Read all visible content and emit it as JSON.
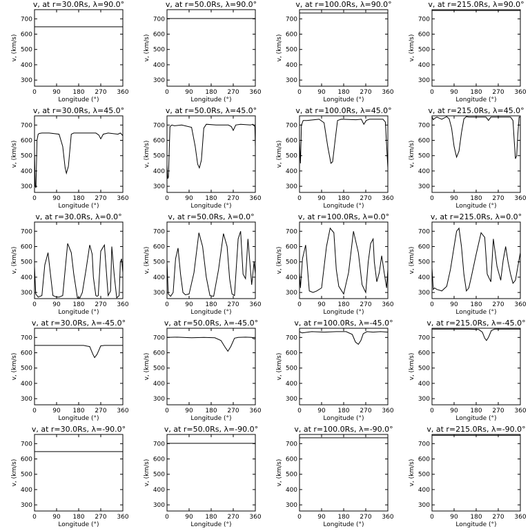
{
  "panels_common": {
    "xlabel": "Longitude (°)",
    "ylabel": "v, (km/s)",
    "xticks": [
      0,
      90,
      180,
      270,
      360
    ],
    "yticks": [
      300,
      400,
      500,
      600,
      700
    ],
    "xlim": [
      0,
      360
    ],
    "ylim": [
      260,
      760
    ]
  },
  "chart_data": [
    {
      "type": "line",
      "title": "v, at r=30.0Rs, λ=90.0°",
      "x": [
        0,
        360
      ],
      "y": [
        648,
        648
      ]
    },
    {
      "type": "line",
      "title": "v, at r=50.0Rs, λ=90.0°",
      "x": [
        0,
        360
      ],
      "y": [
        702,
        702
      ]
    },
    {
      "type": "line",
      "title": "v, at r=100.0Rs, λ=90.0°",
      "x": [
        0,
        360
      ],
      "y": [
        738,
        738
      ]
    },
    {
      "type": "line",
      "title": "v, at r=215.0Rs, λ=90.0°",
      "x": [
        0,
        360
      ],
      "y": [
        754,
        754
      ]
    },
    {
      "type": "line",
      "title": "v, at r=30.0Rs, λ=45.0°",
      "x": [
        0,
        3,
        6,
        10,
        15,
        20,
        30,
        60,
        100,
        115,
        125,
        130,
        138,
        150,
        160,
        200,
        250,
        262,
        270,
        280,
        300,
        340,
        350,
        355,
        360
      ],
      "y": [
        520,
        300,
        290,
        600,
        640,
        645,
        648,
        648,
        640,
        560,
        420,
        385,
        430,
        640,
        648,
        648,
        648,
        635,
        610,
        640,
        648,
        640,
        648,
        640,
        630
      ]
    },
    {
      "type": "line",
      "title": "v, at r=50.0Rs, λ=45.0°",
      "x": [
        0,
        3,
        6,
        12,
        20,
        30,
        60,
        100,
        115,
        125,
        132,
        140,
        150,
        160,
        200,
        250,
        262,
        270,
        280,
        300,
        340,
        350,
        358,
        360
      ],
      "y": [
        440,
        350,
        360,
        690,
        700,
        695,
        700,
        685,
        560,
        445,
        420,
        470,
        680,
        705,
        700,
        700,
        690,
        665,
        700,
        705,
        700,
        705,
        690,
        560
      ]
    },
    {
      "type": "line",
      "title": "v, at r=100.0Rs, λ=45.0°",
      "x": [
        0,
        4,
        8,
        15,
        30,
        60,
        80,
        100,
        115,
        128,
        135,
        145,
        155,
        170,
        230,
        252,
        262,
        272,
        285,
        340,
        350,
        360
      ],
      "y": [
        600,
        450,
        700,
        730,
        730,
        735,
        738,
        715,
        560,
        450,
        460,
        600,
        730,
        738,
        735,
        738,
        705,
        730,
        738,
        738,
        720,
        420
      ]
    },
    {
      "type": "line",
      "title": "v, at r=215.0Rs, λ=45.0°",
      "x": [
        0,
        5,
        12,
        20,
        40,
        60,
        70,
        80,
        90,
        100,
        110,
        120,
        130,
        140,
        150,
        190,
        220,
        230,
        240,
        265,
        300,
        320,
        330,
        335,
        340,
        345,
        350,
        355,
        360
      ],
      "y": [
        755,
        735,
        745,
        752,
        738,
        755,
        740,
        680,
        560,
        490,
        530,
        650,
        740,
        755,
        752,
        752,
        752,
        730,
        752,
        752,
        752,
        752,
        730,
        600,
        480,
        500,
        640,
        752,
        752
      ]
    },
    {
      "type": "line",
      "title": "v, at r=30.0Rs, λ=0.0°",
      "x": [
        0,
        5,
        15,
        30,
        42,
        55,
        65,
        75,
        90,
        100,
        115,
        135,
        150,
        160,
        175,
        185,
        195,
        210,
        225,
        235,
        240,
        250,
        255,
        260,
        270,
        285,
        300,
        310,
        315,
        325,
        335,
        345,
        350,
        355,
        360
      ],
      "y": [
        470,
        290,
        270,
        280,
        480,
        560,
        420,
        280,
        270,
        270,
        280,
        620,
        560,
        420,
        265,
        265,
        300,
        450,
        610,
        550,
        400,
        280,
        275,
        280,
        570,
        610,
        280,
        310,
        600,
        410,
        265,
        280,
        500,
        520,
        430
      ]
    },
    {
      "type": "line",
      "title": "v, at r=50.0Rs, λ=0.0°",
      "x": [
        0,
        5,
        15,
        25,
        35,
        45,
        55,
        65,
        75,
        90,
        110,
        130,
        145,
        160,
        175,
        190,
        210,
        230,
        245,
        255,
        265,
        275,
        290,
        300,
        310,
        320,
        330,
        345,
        355,
        360
      ],
      "y": [
        500,
        290,
        275,
        300,
        520,
        590,
        420,
        300,
        285,
        290,
        430,
        690,
        600,
        400,
        280,
        275,
        450,
        685,
        600,
        390,
        290,
        280,
        650,
        700,
        420,
        390,
        650,
        350,
        500,
        420
      ]
    },
    {
      "type": "line",
      "title": "v, at r=100.0Rs, λ=0.0°",
      "x": [
        0,
        4,
        12,
        25,
        40,
        55,
        70,
        90,
        110,
        125,
        140,
        150,
        160,
        180,
        200,
        220,
        240,
        255,
        270,
        280,
        290,
        300,
        305,
        315,
        325,
        335,
        345,
        355,
        360
      ],
      "y": [
        430,
        330,
        520,
        610,
        310,
        300,
        310,
        330,
        600,
        720,
        690,
        450,
        340,
        290,
        430,
        700,
        560,
        350,
        300,
        500,
        620,
        650,
        500,
        370,
        430,
        540,
        430,
        330,
        450
      ]
    },
    {
      "type": "line",
      "title": "v, at r=215.0Rs, λ=0.0°",
      "x": [
        0,
        5,
        10,
        20,
        40,
        60,
        75,
        90,
        100,
        110,
        120,
        130,
        140,
        150,
        160,
        180,
        200,
        215,
        225,
        240,
        250,
        265,
        280,
        290,
        300,
        310,
        320,
        330,
        340,
        350,
        360
      ],
      "y": [
        460,
        320,
        330,
        320,
        310,
        340,
        450,
        600,
        700,
        720,
        600,
        420,
        310,
        330,
        400,
        550,
        690,
        660,
        420,
        370,
        650,
        470,
        380,
        510,
        600,
        500,
        420,
        360,
        380,
        470,
        560
      ]
    },
    {
      "type": "line",
      "title": "v, at r=30.0Rs, λ=-45.0°",
      "x": [
        0,
        200,
        225,
        238,
        245,
        255,
        270,
        285,
        360
      ],
      "y": [
        648,
        648,
        640,
        590,
        568,
        590,
        645,
        648,
        648
      ]
    },
    {
      "type": "line",
      "title": "v, at r=50.0Rs, λ=-45.0°",
      "x": [
        0,
        40,
        100,
        150,
        195,
        220,
        235,
        248,
        260,
        275,
        290,
        320,
        345,
        355,
        360
      ],
      "y": [
        700,
        702,
        698,
        700,
        698,
        680,
        640,
        610,
        640,
        695,
        700,
        702,
        700,
        690,
        695
      ]
    },
    {
      "type": "line",
      "title": "v, at r=100.0Rs, λ=-45.0°",
      "x": [
        0,
        10,
        50,
        100,
        150,
        190,
        215,
        228,
        240,
        250,
        260,
        275,
        300,
        330,
        360
      ],
      "y": [
        738,
        730,
        738,
        735,
        738,
        738,
        720,
        670,
        655,
        680,
        725,
        738,
        735,
        738,
        735
      ]
    },
    {
      "type": "line",
      "title": "v, at r=215.0Rs, λ=-45.0°",
      "x": [
        0,
        150,
        190,
        205,
        215,
        222,
        230,
        242,
        255,
        290,
        360
      ],
      "y": [
        754,
        754,
        752,
        735,
        695,
        680,
        700,
        745,
        754,
        754,
        754
      ]
    },
    {
      "type": "line",
      "title": "v, at r=30.0Rs, λ=-90.0°",
      "x": [
        0,
        360
      ],
      "y": [
        648,
        648
      ]
    },
    {
      "type": "line",
      "title": "v, at r=50.0Rs, λ=-90.0°",
      "x": [
        0,
        360
      ],
      "y": [
        702,
        702
      ]
    },
    {
      "type": "line",
      "title": "v, at r=100.0Rs, λ=-90.0°",
      "x": [
        0,
        360
      ],
      "y": [
        738,
        738
      ]
    },
    {
      "type": "line",
      "title": "v, at r=215.0Rs, λ=-90.0°",
      "x": [
        0,
        360
      ],
      "y": [
        754,
        754
      ]
    }
  ]
}
